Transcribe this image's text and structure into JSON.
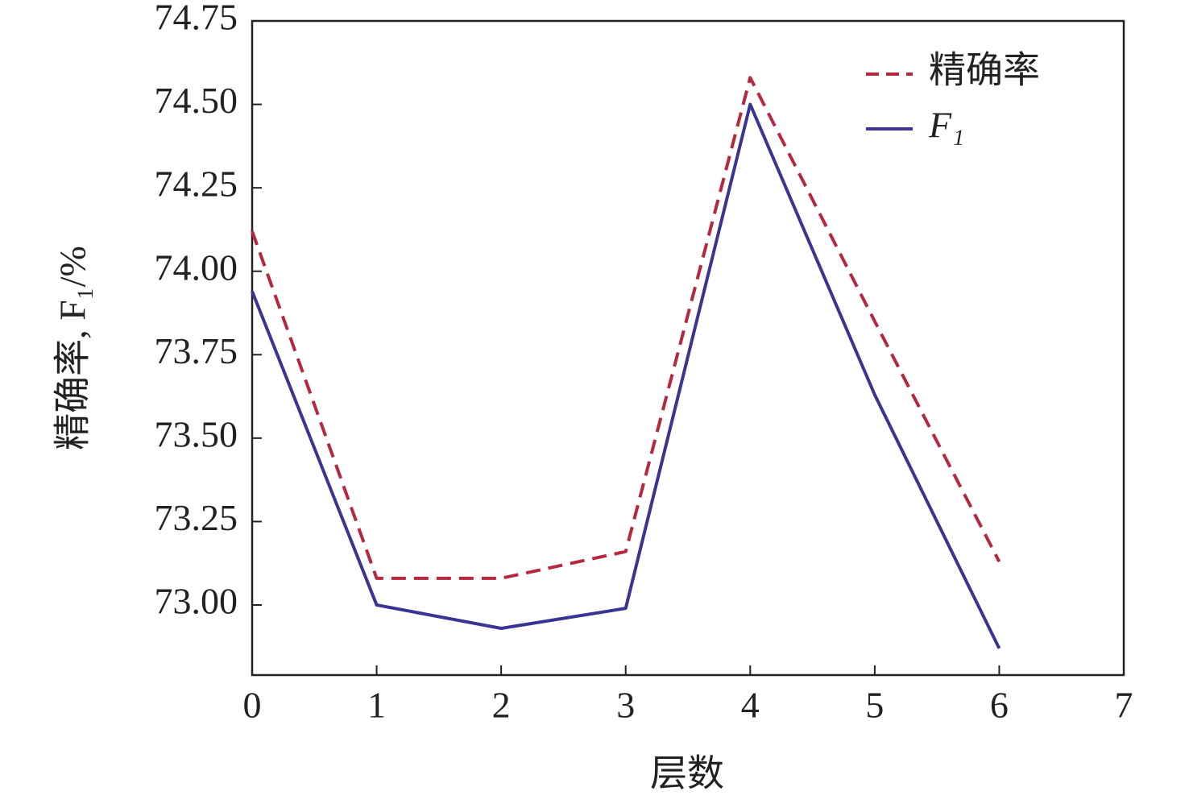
{
  "chart_data": {
    "type": "line",
    "xlabel": "层数",
    "ylabel": "精确率, F₁/%",
    "x": [
      0,
      1,
      2,
      3,
      4,
      5,
      6
    ],
    "series": [
      {
        "name": "精确率",
        "color": "#b5283f",
        "dash": true,
        "values": [
          74.12,
          73.08,
          73.08,
          73.16,
          74.58,
          73.85,
          73.13
        ]
      },
      {
        "name": "F₁",
        "color": "#3a3593",
        "dash": false,
        "values": [
          73.94,
          73.0,
          72.93,
          72.99,
          74.5,
          73.63,
          72.87
        ]
      }
    ],
    "xlim": [
      0,
      7
    ],
    "xticks": [
      0,
      1,
      2,
      3,
      4,
      5,
      6,
      7
    ],
    "ylim": [
      72.79,
      74.75
    ],
    "yticks": [
      {
        "value": 73,
        "label": "73.00"
      },
      73.25,
      {
        "value": 73.5,
        "label": "73.50"
      },
      73.75,
      {
        "value": 74,
        "label": "74.00"
      },
      74.25,
      {
        "value": 74.5,
        "label": "74.50"
      },
      74.75
    ],
    "grid": false,
    "legend": "upper right"
  }
}
